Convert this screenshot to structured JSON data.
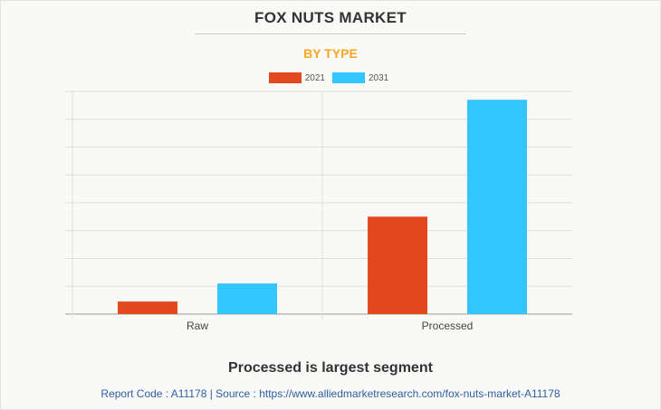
{
  "title": "FOX NUTS MARKET",
  "subtitle": "BY TYPE",
  "caption": "Processed is largest segment",
  "footer": "Report Code : A11178  |  Source : https://www.alliedmarketresearch.com/fox-nuts-market-A11178",
  "colors": {
    "series_2021": "#e2491c",
    "series_2031": "#33c5ff"
  },
  "chart_data": {
    "type": "bar",
    "categories": [
      "Raw",
      "Processed"
    ],
    "series": [
      {
        "name": "2021",
        "values": [
          0.45,
          3.5
        ]
      },
      {
        "name": "2031",
        "values": [
          1.1,
          7.7
        ]
      }
    ],
    "ylim": [
      0,
      8
    ],
    "y_gridlines": 8,
    "ytick_labels_shown": false,
    "grid": true,
    "legend": "top-center"
  }
}
